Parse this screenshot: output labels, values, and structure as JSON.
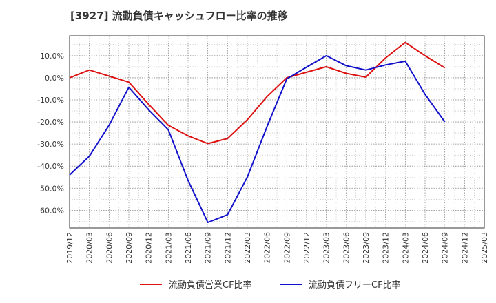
{
  "chart_data": {
    "type": "line",
    "title": "[3927]  流動負債キャッシュフロー比率の推移",
    "xlabel": "",
    "ylabel": "",
    "ylim": [
      -68,
      19
    ],
    "grid": true,
    "legend_position": "bottom",
    "x": [
      "2019/12",
      "2020/03",
      "2020/06",
      "2020/09",
      "2020/12",
      "2021/03",
      "2021/06",
      "2021/09",
      "2021/12",
      "2022/03",
      "2022/06",
      "2022/09",
      "2022/12",
      "2023/03",
      "2023/06",
      "2023/09",
      "2023/12",
      "2024/03",
      "2024/06",
      "2024/09",
      "2024/12",
      "2025/03"
    ],
    "y_ticks": [
      "10.0%",
      "0.0%",
      "-10.0%",
      "-20.0%",
      "-30.0%",
      "-40.0%",
      "-50.0%",
      "-60.0%"
    ],
    "y_tick_values": [
      10,
      0,
      -10,
      -20,
      -30,
      -40,
      -50,
      -60
    ],
    "series": [
      {
        "name": "流動負債営業CF比率",
        "color": "#dd1111",
        "values": [
          0.0,
          3.5,
          0.8,
          -2.0,
          -12.0,
          -21.5,
          -26.3,
          -29.8,
          -27.5,
          -19.0,
          -8.5,
          0.0,
          2.5,
          5.0,
          2.0,
          0.3,
          9.0,
          16.0,
          10.0,
          4.5,
          null,
          null
        ]
      },
      {
        "name": "流動負債フリーCF比率",
        "color": "#1111cc",
        "values": [
          -44.0,
          -35.5,
          -21.5,
          -4.3,
          -14.5,
          -23.5,
          -46.5,
          -65.5,
          -62.0,
          -45.0,
          -22.0,
          -0.5,
          4.8,
          10.0,
          5.5,
          3.5,
          5.8,
          7.5,
          -7.5,
          -20.0,
          null,
          null
        ]
      }
    ]
  }
}
